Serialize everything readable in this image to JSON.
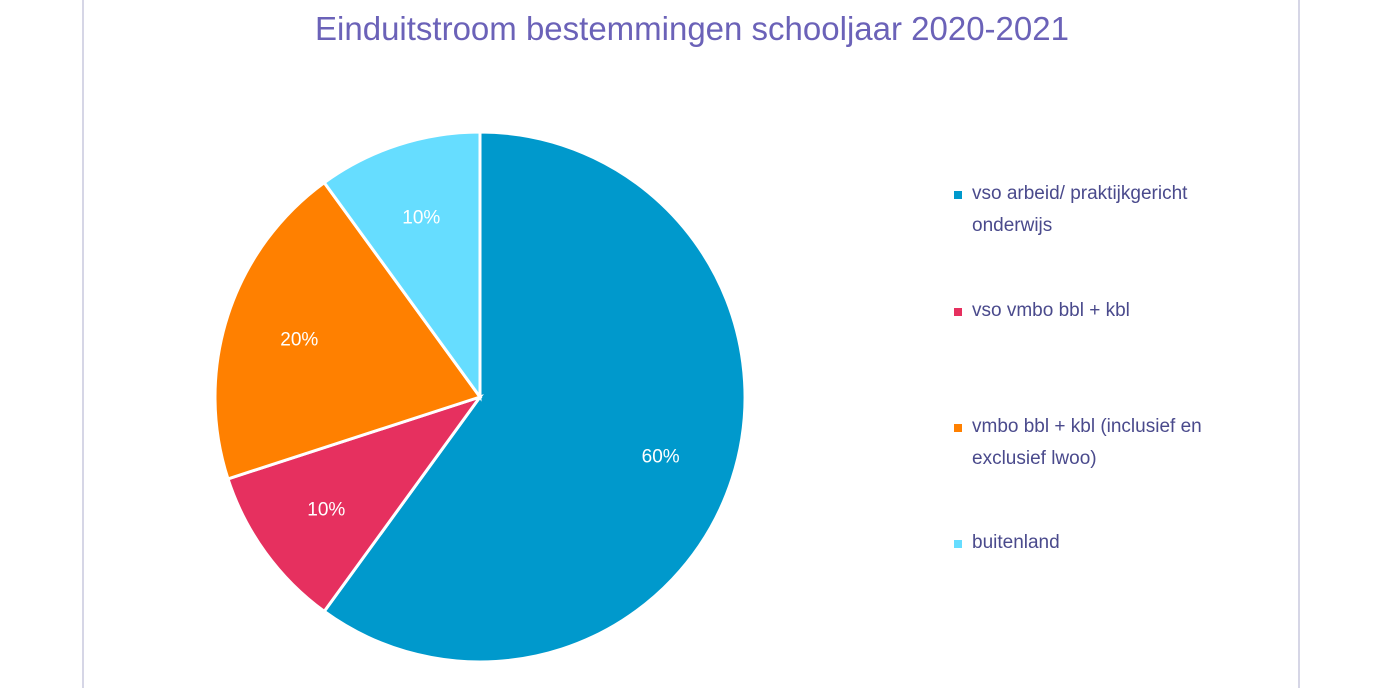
{
  "chart_data": {
    "type": "pie",
    "title": "Einduitstroom bestemmingen schooljaar 2020-2021",
    "start": "12 o'clock",
    "direction": "clockwise",
    "legend_position": "right",
    "slices": [
      {
        "label": "vso arbeid/ praktijkgericht onderwijs",
        "value": 60,
        "display": "60%",
        "color": "#0099cc"
      },
      {
        "label": "vso vmbo bbl + kbl",
        "value": 10,
        "display": "10%",
        "color": "#e6305f"
      },
      {
        "label": "vmbo bbl + kbl (inclusief en exclusief lwoo)",
        "value": 20,
        "display": "20%",
        "color": "#ff8000"
      },
      {
        "label": "buitenland",
        "value": 10,
        "display": "10%",
        "color": "#66ddff"
      }
    ]
  }
}
